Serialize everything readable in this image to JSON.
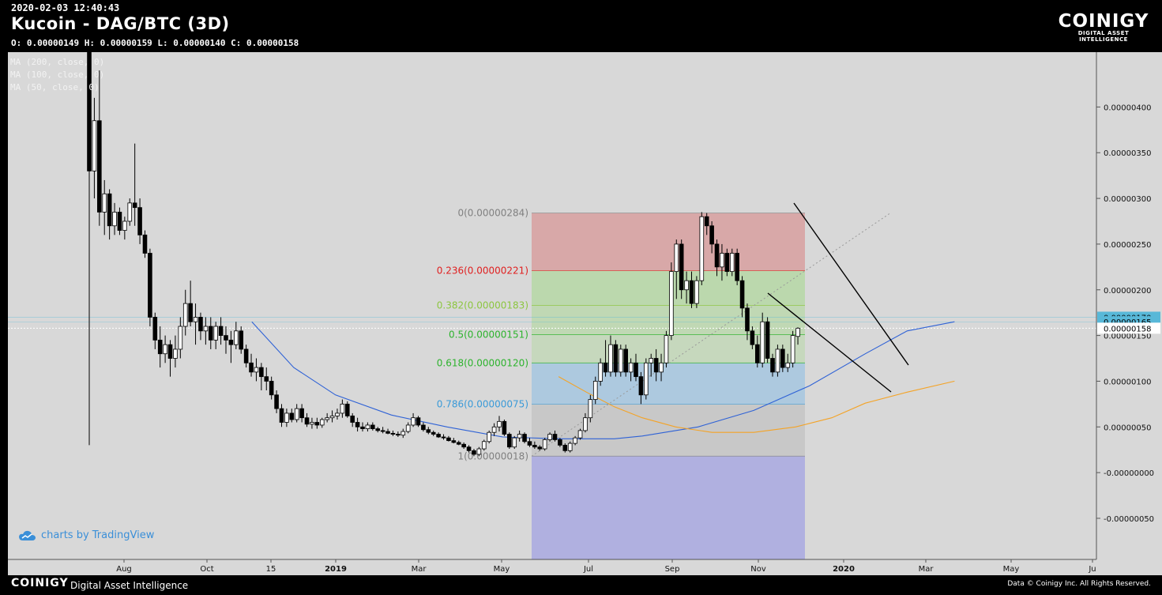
{
  "header": {
    "timestamp": "2020-02-03 12:40:43",
    "title": "Kucoin - DAG/BTC (3D)",
    "ohlc": "O: 0.00000149 H: 0.00000159 L: 0.00000140 C: 0.00000158",
    "brand": "COINIGY",
    "brand_tag": "DIGITAL ASSET INTELLIGENCE"
  },
  "legend": [
    "MA (200, close, 0)",
    "MA (100, close, 0)",
    "MA (50, close, 0)"
  ],
  "tradingview": "charts by TradingView",
  "footer": {
    "brand": "COINIGY",
    "tagline": "Digital Asset Intelligence",
    "rights": "Data © Coinigy Inc.  All Rights Reserved."
  },
  "colors": {
    "background": "#d8d8d8",
    "ma100": "#2f62d6",
    "ma50": "#f4a326",
    "fib_red": "#d8a8a8",
    "fib_green": "#b8d8a8",
    "fib_blue": "#a8c8e0",
    "fib_gray": "#c8c8c8",
    "fib_violet": "#b0b0e0",
    "price_marker": "#58b8d8"
  },
  "chart_data": {
    "type": "candlestick",
    "x_tick_labels": [
      "Aug",
      "Oct",
      "15",
      "2019",
      "Mar",
      "May",
      "Jul",
      "Sep",
      "Nov",
      "2020",
      "Mar",
      "May",
      "Ju"
    ],
    "y_tick_labels": [
      "0.00000400",
      "0.00000350",
      "0.00000300",
      "0.00000250",
      "0.00000200",
      "0.00000150",
      "0.00000100",
      "0.00000050",
      "-0.00000000",
      "-0.00000050"
    ],
    "y_ticks": [
      4e-06,
      3.5e-06,
      3e-06,
      2.5e-06,
      2e-06,
      1.5e-06,
      1e-06,
      5e-07,
      0,
      -5e-07
    ],
    "ylim": [
      -9.5e-07,
      4.6e-06
    ],
    "price_markers": [
      {
        "label": "0.00000170",
        "value": 1.7e-06
      },
      {
        "label": "0.00000165",
        "value": 1.65e-06
      },
      {
        "label": "0.00000158",
        "value": 1.58e-06
      }
    ],
    "fibonacci": {
      "high": 2.84e-06,
      "low": 1.8e-07,
      "levels": [
        {
          "label": "0(0.00000284)",
          "ratio": 0,
          "price": 2.84e-06,
          "color": "#808080"
        },
        {
          "label": "0.236(0.00000221)",
          "ratio": 0.236,
          "price": 2.21e-06,
          "color": "#e02020"
        },
        {
          "label": "0.382(0.00000183)",
          "ratio": 0.382,
          "price": 1.83e-06,
          "color": "#8cc63f"
        },
        {
          "label": "0.5(0.00000151)",
          "ratio": 0.5,
          "price": 1.51e-06,
          "color": "#2db32d"
        },
        {
          "label": "0.618(0.00000120)",
          "ratio": 0.618,
          "price": 1.2e-06,
          "color": "#2db32d"
        },
        {
          "label": "0.786(0.00000075)",
          "ratio": 0.786,
          "price": 7.5e-07,
          "color": "#3a9ad8"
        },
        {
          "label": "1(0.00000018)",
          "ratio": 1,
          "price": 1.8e-07,
          "color": "#808080"
        }
      ]
    },
    "candles": [
      [
        4.6e-06,
        4.6e-06,
        3e-07,
        3.3e-06
      ],
      [
        3.3e-06,
        4.1e-06,
        3e-06,
        3.85e-06
      ],
      [
        3.85e-06,
        4.4e-06,
        2.7e-06,
        2.85e-06
      ],
      [
        2.85e-06,
        3.2e-06,
        2.6e-06,
        3.05e-06
      ],
      [
        3.05e-06,
        3.1e-06,
        2.55e-06,
        2.7e-06
      ],
      [
        2.7e-06,
        2.95e-06,
        2.6e-06,
        2.85e-06
      ],
      [
        2.85e-06,
        2.9e-06,
        2.6e-06,
        2.65e-06
      ],
      [
        2.65e-06,
        2.8e-06,
        2.55e-06,
        2.75e-06
      ],
      [
        2.75e-06,
        3e-06,
        2.7e-06,
        2.95e-06
      ],
      [
        2.95e-06,
        3.6e-06,
        2.7e-06,
        2.9e-06
      ],
      [
        2.9e-06,
        3e-06,
        2.5e-06,
        2.6e-06
      ],
      [
        2.6e-06,
        2.65e-06,
        2.35e-06,
        2.4e-06
      ],
      [
        2.4e-06,
        2.45e-06,
        1.6e-06,
        1.7e-06
      ],
      [
        1.7e-06,
        1.75e-06,
        1.35e-06,
        1.45e-06
      ],
      [
        1.45e-06,
        1.6e-06,
        1.15e-06,
        1.3e-06
      ],
      [
        1.3e-06,
        1.5e-06,
        1.2e-06,
        1.4e-06
      ],
      [
        1.4e-06,
        1.45e-06,
        1.05e-06,
        1.25e-06
      ],
      [
        1.25e-06,
        1.5e-06,
        1.15e-06,
        1.35e-06
      ],
      [
        1.35e-06,
        1.7e-06,
        1.25e-06,
        1.6e-06
      ],
      [
        1.6e-06,
        2e-06,
        1.5e-06,
        1.85e-06
      ],
      [
        1.85e-06,
        2.1e-06,
        1.6e-06,
        1.65e-06
      ],
      [
        1.65e-06,
        1.85e-06,
        1.4e-06,
        1.7e-06
      ],
      [
        1.7e-06,
        1.75e-06,
        1.45e-06,
        1.55e-06
      ],
      [
        1.55e-06,
        1.7e-06,
        1.4e-06,
        1.6e-06
      ],
      [
        1.6e-06,
        1.7e-06,
        1.35e-06,
        1.45e-06
      ],
      [
        1.45e-06,
        1.65e-06,
        1.35e-06,
        1.6e-06
      ],
      [
        1.6e-06,
        1.7e-06,
        1.4e-06,
        1.5e-06
      ],
      [
        1.5e-06,
        1.6e-06,
        1.3e-06,
        1.45e-06
      ],
      [
        1.45e-06,
        1.55e-06,
        1.2e-06,
        1.4e-06
      ],
      [
        1.4e-06,
        1.65e-06,
        1.35e-06,
        1.55e-06
      ],
      [
        1.55e-06,
        1.6e-06,
        1.3e-06,
        1.35e-06
      ],
      [
        1.35e-06,
        1.4e-06,
        1.15e-06,
        1.2e-06
      ],
      [
        1.2e-06,
        1.3e-06,
        1.05e-06,
        1.1e-06
      ],
      [
        1.1e-06,
        1.25e-06,
        1e-06,
        1.15e-06
      ],
      [
        1.15e-06,
        1.2e-06,
        9e-07,
        1.05e-06
      ],
      [
        1.05e-06,
        1.15e-06,
        9e-07,
        1e-06
      ],
      [
        1e-06,
        1.05e-06,
        8e-07,
        8.5e-07
      ],
      [
        8.5e-07,
        9e-07,
        6.5e-07,
        7e-07
      ],
      [
        7e-07,
        7.5e-07,
        5e-07,
        5.5e-07
      ],
      [
        5.5e-07,
        7e-07,
        5e-07,
        6.5e-07
      ],
      [
        6.5e-07,
        7e-07,
        5.5e-07,
        5.8e-07
      ],
      [
        5.8e-07,
        7.5e-07,
        5.5e-07,
        7e-07
      ],
      [
        7e-07,
        7.5e-07,
        5.5e-07,
        6e-07
      ],
      [
        6e-07,
        6.5e-07,
        5e-07,
        5.3e-07
      ],
      [
        5.3e-07,
        6e-07,
        4.8e-07,
        5.5e-07
      ],
      [
        5.5e-07,
        6e-07,
        4.8e-07,
        5.2e-07
      ],
      [
        5.2e-07,
        6e-07,
        4.9e-07,
        5.8e-07
      ],
      [
        5.8e-07,
        6.5e-07,
        5.5e-07,
        6e-07
      ],
      [
        6e-07,
        6.8e-07,
        5.5e-07,
        6.2e-07
      ],
      [
        6.2e-07,
        7e-07,
        5.8e-07,
        6.5e-07
      ],
      [
        6.5e-07,
        8e-07,
        6e-07,
        7.5e-07
      ],
      [
        7.5e-07,
        7.8e-07,
        6e-07,
        6.2e-07
      ],
      [
        6.2e-07,
        6.5e-07,
        5e-07,
        5.5e-07
      ],
      [
        5.5e-07,
        6e-07,
        4.5e-07,
        5e-07
      ],
      [
        5e-07,
        5.5e-07,
        4.5e-07,
        4.8e-07
      ],
      [
        4.8e-07,
        5.5e-07,
        4.5e-07,
        5.2e-07
      ],
      [
        5.2e-07,
        5.5e-07,
        4.6e-07,
        4.8e-07
      ],
      [
        4.8e-07,
        5e-07,
        4.4e-07,
        4.6e-07
      ],
      [
        4.6e-07,
        5e-07,
        4.3e-07,
        4.5e-07
      ],
      [
        4.5e-07,
        4.8e-07,
        4.2e-07,
        4.3e-07
      ],
      [
        4.3e-07,
        4.6e-07,
        4e-07,
        4.2e-07
      ],
      [
        4.2e-07,
        4.5e-07,
        3.9e-07,
        4.1e-07
      ],
      [
        4.1e-07,
        4.8e-07,
        3.8e-07,
        4.5e-07
      ],
      [
        4.5e-07,
        5.5e-07,
        4.3e-07,
        5.2e-07
      ],
      [
        5.2e-07,
        6.5e-07,
        5e-07,
        6e-07
      ],
      [
        6e-07,
        6.2e-07,
        5e-07,
        5.2e-07
      ],
      [
        5.2e-07,
        5.5e-07,
        4.5e-07,
        4.7e-07
      ],
      [
        4.7e-07,
        5e-07,
        4.2e-07,
        4.4e-07
      ],
      [
        4.4e-07,
        4.6e-07,
        4e-07,
        4.2e-07
      ],
      [
        4.2e-07,
        4.4e-07,
        3.8e-07,
        3.9e-07
      ],
      [
        3.9e-07,
        4.2e-07,
        3.6e-07,
        3.8e-07
      ],
      [
        3.8e-07,
        4e-07,
        3.4e-07,
        3.5e-07
      ],
      [
        3.5e-07,
        3.8e-07,
        3.2e-07,
        3.3e-07
      ],
      [
        3.3e-07,
        3.5e-07,
        3e-07,
        3.1e-07
      ],
      [
        3.1e-07,
        3.3e-07,
        2.6e-07,
        2.8e-07
      ],
      [
        2.8e-07,
        3e-07,
        2.2e-07,
        2.4e-07
      ],
      [
        2.4e-07,
        2.6e-07,
        1.8e-07,
        2e-07
      ],
      [
        2e-07,
        2.8e-07,
        1.8e-07,
        2.6e-07
      ],
      [
        2.6e-07,
        3.6e-07,
        2.4e-07,
        3.4e-07
      ],
      [
        3.4e-07,
        4.6e-07,
        3.2e-07,
        4.4e-07
      ],
      [
        4.4e-07,
        5.4e-07,
        4e-07,
        5e-07
      ],
      [
        5e-07,
        6.2e-07,
        4.5e-07,
        5.6e-07
      ],
      [
        5.6e-07,
        5.8e-07,
        4e-07,
        4.2e-07
      ],
      [
        4.2e-07,
        4.4e-07,
        2.6e-07,
        2.8e-07
      ],
      [
        2.8e-07,
        4e-07,
        2.6e-07,
        3.8e-07
      ],
      [
        3.8e-07,
        4.6e-07,
        3.4e-07,
        4.2e-07
      ],
      [
        4.2e-07,
        4.4e-07,
        3.2e-07,
        3.4e-07
      ],
      [
        3.4e-07,
        3.8e-07,
        2.8e-07,
        3e-07
      ],
      [
        3e-07,
        3.4e-07,
        2.6e-07,
        2.8e-07
      ],
      [
        2.8e-07,
        3e-07,
        2.4e-07,
        2.6e-07
      ],
      [
        2.6e-07,
        3.8e-07,
        2.4e-07,
        3.6e-07
      ],
      [
        3.6e-07,
        4.4e-07,
        3.4e-07,
        4.2e-07
      ],
      [
        4.2e-07,
        4.6e-07,
        3.4e-07,
        3.6e-07
      ],
      [
        3.6e-07,
        3.8e-07,
        2.8e-07,
        3e-07
      ],
      [
        3e-07,
        3.2e-07,
        2.2e-07,
        2.4e-07
      ],
      [
        2.4e-07,
        3.4e-07,
        2.2e-07,
        3.2e-07
      ],
      [
        3.2e-07,
        4e-07,
        3e-07,
        3.8e-07
      ],
      [
        3.8e-07,
        4.8e-07,
        3.6e-07,
        4.6e-07
      ],
      [
        4.6e-07,
        6.5e-07,
        4.4e-07,
        6e-07
      ],
      [
        6e-07,
        8.5e-07,
        5.5e-07,
        8e-07
      ],
      [
        8e-07,
        1.05e-06,
        7.5e-07,
        1e-06
      ],
      [
        1e-06,
        1.25e-06,
        9.5e-07,
        1.2e-06
      ],
      [
        1.2e-06,
        1.45e-06,
        1.05e-06,
        1.1e-06
      ],
      [
        1.1e-06,
        1.5e-06,
        1.05e-06,
        1.4e-06
      ],
      [
        1.4e-06,
        1.45e-06,
        1.05e-06,
        1.1e-06
      ],
      [
        1.1e-06,
        1.4e-06,
        1.05e-06,
        1.35e-06
      ],
      [
        1.35e-06,
        1.4e-06,
        1.05e-06,
        1.1e-06
      ],
      [
        1.1e-06,
        1.25e-06,
        1e-06,
        1.2e-06
      ],
      [
        1.2e-06,
        1.3e-06,
        1e-06,
        1.05e-06
      ],
      [
        1.05e-06,
        1.1e-06,
        7.5e-07,
        8.5e-07
      ],
      [
        8.5e-07,
        1.25e-06,
        8e-07,
        1.2e-06
      ],
      [
        1.2e-06,
        1.3e-06,
        1.05e-06,
        1.25e-06
      ],
      [
        1.25e-06,
        1.35e-06,
        1e-06,
        1.1e-06
      ],
      [
        1.1e-06,
        1.3e-06,
        1e-06,
        1.2e-06
      ],
      [
        1.2e-06,
        1.55e-06,
        1.15e-06,
        1.5e-06
      ],
      [
        1.5e-06,
        2.3e-06,
        1.45e-06,
        2.2e-06
      ],
      [
        2.2e-06,
        2.55e-06,
        1.9e-06,
        2.5e-06
      ],
      [
        2.5e-06,
        2.55e-06,
        1.9e-06,
        2e-06
      ],
      [
        2e-06,
        2.2e-06,
        1.85e-06,
        2.1e-06
      ],
      [
        2.1e-06,
        2.2e-06,
        1.8e-06,
        1.85e-06
      ],
      [
        1.85e-06,
        2.15e-06,
        1.8e-06,
        2.1e-06
      ],
      [
        2.1e-06,
        2.85e-06,
        2.05e-06,
        2.8e-06
      ],
      [
        2.8e-06,
        2.84e-06,
        2.6e-06,
        2.7e-06
      ],
      [
        2.7e-06,
        2.75e-06,
        2.4e-06,
        2.5e-06
      ],
      [
        2.5e-06,
        2.55e-06,
        2.15e-06,
        2.25e-06
      ],
      [
        2.25e-06,
        2.5e-06,
        2.1e-06,
        2.4e-06
      ],
      [
        2.4e-06,
        2.45e-06,
        2.15e-06,
        2.2e-06
      ],
      [
        2.2e-06,
        2.45e-06,
        2.15e-06,
        2.4e-06
      ],
      [
        2.4e-06,
        2.45e-06,
        2.05e-06,
        2.1e-06
      ],
      [
        2.1e-06,
        2.15e-06,
        1.7e-06,
        1.8e-06
      ],
      [
        1.8e-06,
        1.85e-06,
        1.45e-06,
        1.55e-06
      ],
      [
        1.55e-06,
        1.6e-06,
        1.35e-06,
        1.4e-06
      ],
      [
        1.4e-06,
        1.5e-06,
        1.15e-06,
        1.2e-06
      ],
      [
        1.2e-06,
        1.75e-06,
        1.15e-06,
        1.65e-06
      ],
      [
        1.65e-06,
        1.7e-06,
        1.2e-06,
        1.25e-06
      ],
      [
        1.25e-06,
        1.3e-06,
        1.05e-06,
        1.1e-06
      ],
      [
        1.1e-06,
        1.4e-06,
        1.05e-06,
        1.35e-06
      ],
      [
        1.35e-06,
        1.4e-06,
        1.1e-06,
        1.15e-06
      ],
      [
        1.15e-06,
        1.3e-06,
        1.1e-06,
        1.2e-06
      ],
      [
        1.2e-06,
        1.55e-06,
        1.15e-06,
        1.5e-06
      ],
      [
        1.49e-06,
        1.59e-06,
        1.4e-06,
        1.58e-06
      ]
    ],
    "moving_averages": [
      {
        "name": "MA (100, close, 0)",
        "color": "#2f62d6",
        "points": [
          [
            60,
            1.65e-06
          ],
          [
            75,
            1.15e-06
          ],
          [
            90,
            8.5e-07
          ],
          [
            110,
            6.3e-07
          ],
          [
            130,
            5e-07
          ],
          [
            150,
            3.9e-07
          ],
          [
            170,
            3.7e-07
          ],
          [
            190,
            3.7e-07
          ],
          [
            200,
            4e-07
          ],
          [
            220,
            5e-07
          ],
          [
            240,
            6.8e-07
          ],
          [
            260,
            9.5e-07
          ],
          [
            280,
            1.3e-06
          ],
          [
            295,
            1.55e-06
          ],
          [
            312,
            1.65e-06
          ]
        ]
      },
      {
        "name": "MA (50, close, 0)",
        "color": "#f4a326",
        "points": [
          [
            170,
            1.05e-06
          ],
          [
            180,
            8.8e-07
          ],
          [
            190,
            7.2e-07
          ],
          [
            200,
            6e-07
          ],
          [
            212,
            5e-07
          ],
          [
            225,
            4.4e-07
          ],
          [
            240,
            4.4e-07
          ],
          [
            255,
            5e-07
          ],
          [
            268,
            6e-07
          ],
          [
            280,
            7.6e-07
          ],
          [
            295,
            8.8e-07
          ],
          [
            312,
            1e-06
          ]
        ]
      }
    ],
    "trend_lines": [
      {
        "from": [
          289,
          2.84e-06
        ],
        "to": [
          325,
          1.1e-06
        ]
      },
      {
        "from": [
          280,
          1.85e-06
        ],
        "to": [
          323,
          8e-07
        ]
      }
    ],
    "x_index_range": [
      0,
      350
    ]
  }
}
